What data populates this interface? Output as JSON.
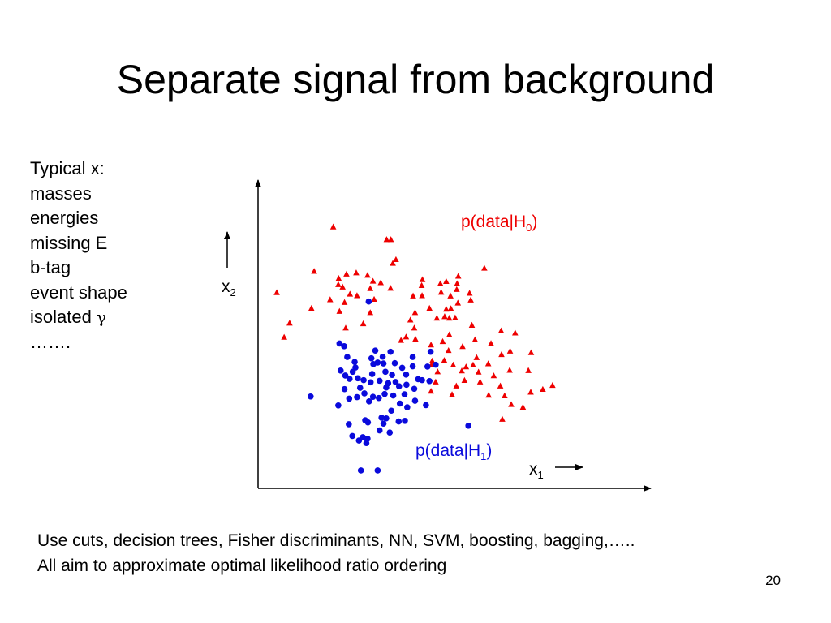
{
  "slide": {
    "title": "Separate signal from background",
    "sidebar_list": {
      "items": [
        "Typical x:",
        "masses",
        "energies",
        "missing E",
        "b-tag",
        "event shape",
        "isolated ",
        "……."
      ],
      "gamma_symbol": "γ"
    },
    "footer_lines": [
      "Use cuts, decision trees, Fisher discriminants, NN, SVM, boosting, bagging,…..",
      "All aim to approximate optimal likelihood ratio ordering"
    ],
    "page_number": "20"
  },
  "chart_data": {
    "type": "scatter",
    "title": "",
    "xlabel": {
      "base": "x",
      "sub": "1"
    },
    "ylabel": {
      "base": "x",
      "sub": "2"
    },
    "xlim": [
      0,
      100
    ],
    "ylim": [
      0,
      100
    ],
    "grid": false,
    "ticks": false,
    "series": [
      {
        "name": "p(data|H0)",
        "label": {
          "prefix": "p(data|H",
          "sub": "0",
          "suffix": ")"
        },
        "marker": "triangle",
        "color": "#ee0000",
        "points": [
          [
            19.3,
            84.8
          ],
          [
            33.0,
            80.7
          ],
          [
            34.1,
            80.7
          ],
          [
            35.4,
            74.2
          ],
          [
            34.6,
            73.0
          ],
          [
            58.1,
            71.4
          ],
          [
            14.4,
            70.4
          ],
          [
            22.7,
            69.5
          ],
          [
            28.1,
            69.1
          ],
          [
            20.7,
            68.1
          ],
          [
            25.2,
            69.9
          ],
          [
            29.5,
            67.2
          ],
          [
            31.5,
            66.7
          ],
          [
            20.6,
            66.1
          ],
          [
            21.7,
            65.3
          ],
          [
            28.8,
            64.8
          ],
          [
            34.0,
            64.9
          ],
          [
            42.2,
            67.7
          ],
          [
            42.0,
            65.8
          ],
          [
            48.3,
            67.1
          ],
          [
            51.4,
            68.8
          ],
          [
            51.1,
            66.4
          ],
          [
            46.8,
            66.4
          ],
          [
            51.0,
            64.5
          ],
          [
            47.0,
            63.6
          ],
          [
            4.8,
            63.5
          ],
          [
            23.6,
            63.0
          ],
          [
            25.4,
            62.5
          ],
          [
            29.8,
            61.3
          ],
          [
            18.5,
            61.2
          ],
          [
            22.2,
            60.3
          ],
          [
            39.8,
            62.4
          ],
          [
            42.1,
            62.5
          ],
          [
            49.4,
            62.4
          ],
          [
            54.3,
            63.3
          ],
          [
            49.5,
            58.3
          ],
          [
            51.3,
            60.1
          ],
          [
            54.6,
            61.1
          ],
          [
            13.7,
            58.4
          ],
          [
            20.9,
            57.4
          ],
          [
            28.8,
            57.0
          ],
          [
            40.3,
            57.0
          ],
          [
            44.0,
            58.4
          ],
          [
            48.3,
            58.1
          ],
          [
            45.9,
            55.2
          ],
          [
            47.9,
            55.7
          ],
          [
            49.1,
            55.2
          ],
          [
            50.6,
            55.3
          ],
          [
            8.1,
            53.6
          ],
          [
            22.5,
            52.0
          ],
          [
            27.0,
            53.4
          ],
          [
            39.1,
            54.6
          ],
          [
            54.9,
            52.9
          ],
          [
            40.1,
            52.0
          ],
          [
            62.4,
            51.1
          ],
          [
            49.1,
            49.8
          ],
          [
            55.7,
            48.2
          ],
          [
            40.4,
            48.4
          ],
          [
            38.0,
            49.1
          ],
          [
            66.0,
            50.4
          ],
          [
            6.7,
            49.0
          ],
          [
            36.7,
            48.0
          ],
          [
            47.4,
            47.6
          ],
          [
            59.8,
            47.0
          ],
          [
            44.4,
            46.5
          ],
          [
            52.5,
            46.0
          ],
          [
            48.9,
            44.7
          ],
          [
            47.8,
            41.5
          ],
          [
            44.7,
            41.3
          ],
          [
            56.1,
            42.4
          ],
          [
            62.5,
            43.4
          ],
          [
            64.7,
            44.5
          ],
          [
            70.1,
            44.0
          ],
          [
            44.5,
            40.0
          ],
          [
            50.1,
            40.0
          ],
          [
            53.4,
            39.4
          ],
          [
            55.2,
            40.0
          ],
          [
            59.1,
            40.4
          ],
          [
            46.1,
            37.8
          ],
          [
            52.3,
            38.1
          ],
          [
            56.6,
            37.7
          ],
          [
            60.5,
            36.5
          ],
          [
            64.6,
            38.3
          ],
          [
            69.4,
            38.2
          ],
          [
            45.6,
            34.5
          ],
          [
            53.0,
            35.0
          ],
          [
            57.0,
            34.5
          ],
          [
            50.9,
            33.2
          ],
          [
            62.2,
            33.2
          ],
          [
            75.6,
            33.4
          ],
          [
            73.1,
            32.1
          ],
          [
            44.4,
            31.5
          ],
          [
            49.8,
            30.4
          ],
          [
            59.2,
            30.2
          ],
          [
            63.3,
            30.0
          ],
          [
            70.0,
            31.2
          ],
          [
            68.0,
            26.3
          ],
          [
            65.0,
            27.2
          ],
          [
            62.7,
            22.4
          ]
        ]
      },
      {
        "name": "p(data|H1)",
        "label": {
          "prefix": "p(data|H",
          "sub": "1",
          "suffix": ")"
        },
        "marker": "dot",
        "color": "#0a0adc",
        "points": [
          [
            28.4,
            60.6
          ],
          [
            20.9,
            47.0
          ],
          [
            22.1,
            46.1
          ],
          [
            30.1,
            44.7
          ],
          [
            34.0,
            44.3
          ],
          [
            44.3,
            44.3
          ],
          [
            22.9,
            42.6
          ],
          [
            29.1,
            42.2
          ],
          [
            32.0,
            42.7
          ],
          [
            39.7,
            42.6
          ],
          [
            24.8,
            41.0
          ],
          [
            25.0,
            39.2
          ],
          [
            24.3,
            37.8
          ],
          [
            29.6,
            40.3
          ],
          [
            30.7,
            40.8
          ],
          [
            32.2,
            40.5
          ],
          [
            35.1,
            40.6
          ],
          [
            37.0,
            39.1
          ],
          [
            39.7,
            39.6
          ],
          [
            43.5,
            39.5
          ],
          [
            45.6,
            40.1
          ],
          [
            21.2,
            38.2
          ],
          [
            22.4,
            36.6
          ],
          [
            29.3,
            37.1
          ],
          [
            32.7,
            37.8
          ],
          [
            34.4,
            36.8
          ],
          [
            38.0,
            36.9
          ],
          [
            23.5,
            35.5
          ],
          [
            25.6,
            35.7
          ],
          [
            27.1,
            35.1
          ],
          [
            28.9,
            34.4
          ],
          [
            31.2,
            34.9
          ],
          [
            33.4,
            34.1
          ],
          [
            35.3,
            34.5
          ],
          [
            38.1,
            33.6
          ],
          [
            41.1,
            35.4
          ],
          [
            42.1,
            35.1
          ],
          [
            44.0,
            34.8
          ],
          [
            22.2,
            32.2
          ],
          [
            26.2,
            32.6
          ],
          [
            32.9,
            32.7
          ],
          [
            36.2,
            33.1
          ],
          [
            40.1,
            32.3
          ],
          [
            32.5,
            30.6
          ],
          [
            37.6,
            30.5
          ],
          [
            29.5,
            29.7
          ],
          [
            23.4,
            29.1
          ],
          [
            25.4,
            29.6
          ],
          [
            27.3,
            30.8
          ],
          [
            31.0,
            29.3
          ],
          [
            34.7,
            30.1
          ],
          [
            28.5,
            28.2
          ],
          [
            40.3,
            28.4
          ],
          [
            36.4,
            27.5
          ],
          [
            43.1,
            27.0
          ],
          [
            38.3,
            26.3
          ],
          [
            13.5,
            29.8
          ],
          [
            20.6,
            26.9
          ],
          [
            34.2,
            25.2
          ],
          [
            32.9,
            22.7
          ],
          [
            31.7,
            22.9
          ],
          [
            27.5,
            22.1
          ],
          [
            28.2,
            21.4
          ],
          [
            32.2,
            21.0
          ],
          [
            36.1,
            21.7
          ],
          [
            37.7,
            21.9
          ],
          [
            23.3,
            20.8
          ],
          [
            31.2,
            18.8
          ],
          [
            33.8,
            18.1
          ],
          [
            24.2,
            17.0
          ],
          [
            26.9,
            16.6
          ],
          [
            28.1,
            16.1
          ],
          [
            25.9,
            15.5
          ],
          [
            27.8,
            14.7
          ],
          [
            54.0,
            20.3
          ],
          [
            26.4,
            5.8
          ],
          [
            30.7,
            5.8
          ]
        ]
      }
    ]
  }
}
